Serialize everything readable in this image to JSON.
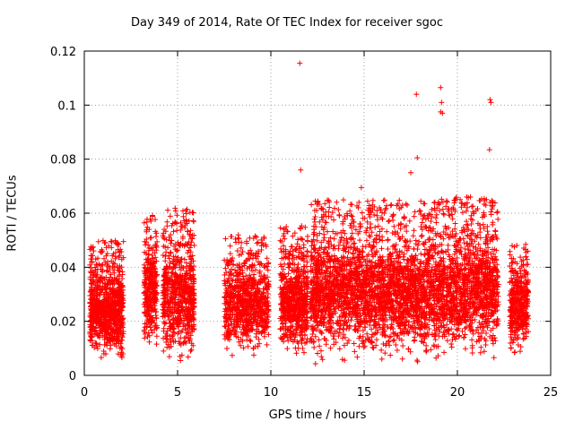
{
  "chart_data": {
    "type": "scatter",
    "title": "Day 349 of 2014, Rate Of TEC Index for receiver sgoc",
    "xlabel": "GPS time / hours",
    "ylabel": "ROTI / TECUs",
    "xlim": [
      0,
      25
    ],
    "ylim": [
      0,
      0.12
    ],
    "xticks": [
      "0",
      "5",
      "10",
      "15",
      "20",
      "25"
    ],
    "yticks": [
      "0",
      "0.02",
      "0.04",
      "0.06",
      "0.08",
      "0.1",
      "0.12"
    ],
    "grid": true,
    "marker": "+",
    "color": "#ff0000",
    "series": [
      {
        "name": "ROTI",
        "segments": [
          {
            "x_range": [
              0.3,
              2.1
            ],
            "y_range": [
              0.003,
              0.05
            ],
            "density": 900
          },
          {
            "x_range": [
              3.2,
              3.9
            ],
            "y_range": [
              0.008,
              0.06
            ],
            "density": 320
          },
          {
            "x_range": [
              4.2,
              5.9
            ],
            "y_range": [
              0.003,
              0.062
            ],
            "density": 700
          },
          {
            "x_range": [
              7.5,
              9.9
            ],
            "y_range": [
              0.005,
              0.052
            ],
            "density": 800
          },
          {
            "x_range": [
              10.5,
              12.0
            ],
            "y_range": [
              0.004,
              0.056
            ],
            "density": 650
          },
          {
            "x_range": [
              12.1,
              18.8
            ],
            "y_range": [
              0.003,
              0.065
            ],
            "density": 2600
          },
          {
            "x_range": [
              18.8,
              22.2
            ],
            "y_range": [
              0.003,
              0.066
            ],
            "density": 1300
          },
          {
            "x_range": [
              22.8,
              23.8
            ],
            "y_range": [
              0.005,
              0.05
            ],
            "density": 400
          }
        ],
        "outliers": [
          {
            "x": 11.55,
            "y": 0.1155
          },
          {
            "x": 11.6,
            "y": 0.076
          },
          {
            "x": 17.8,
            "y": 0.104
          },
          {
            "x": 17.85,
            "y": 0.0805
          },
          {
            "x": 17.5,
            "y": 0.075
          },
          {
            "x": 19.1,
            "y": 0.1065
          },
          {
            "x": 19.15,
            "y": 0.101
          },
          {
            "x": 19.2,
            "y": 0.097
          },
          {
            "x": 19.1,
            "y": 0.0975
          },
          {
            "x": 21.75,
            "y": 0.102
          },
          {
            "x": 21.8,
            "y": 0.101
          },
          {
            "x": 21.72,
            "y": 0.0835
          },
          {
            "x": 21.8,
            "y": 0.0605
          },
          {
            "x": 14.85,
            "y": 0.0695
          },
          {
            "x": 20.7,
            "y": 0.066
          }
        ]
      }
    ]
  }
}
